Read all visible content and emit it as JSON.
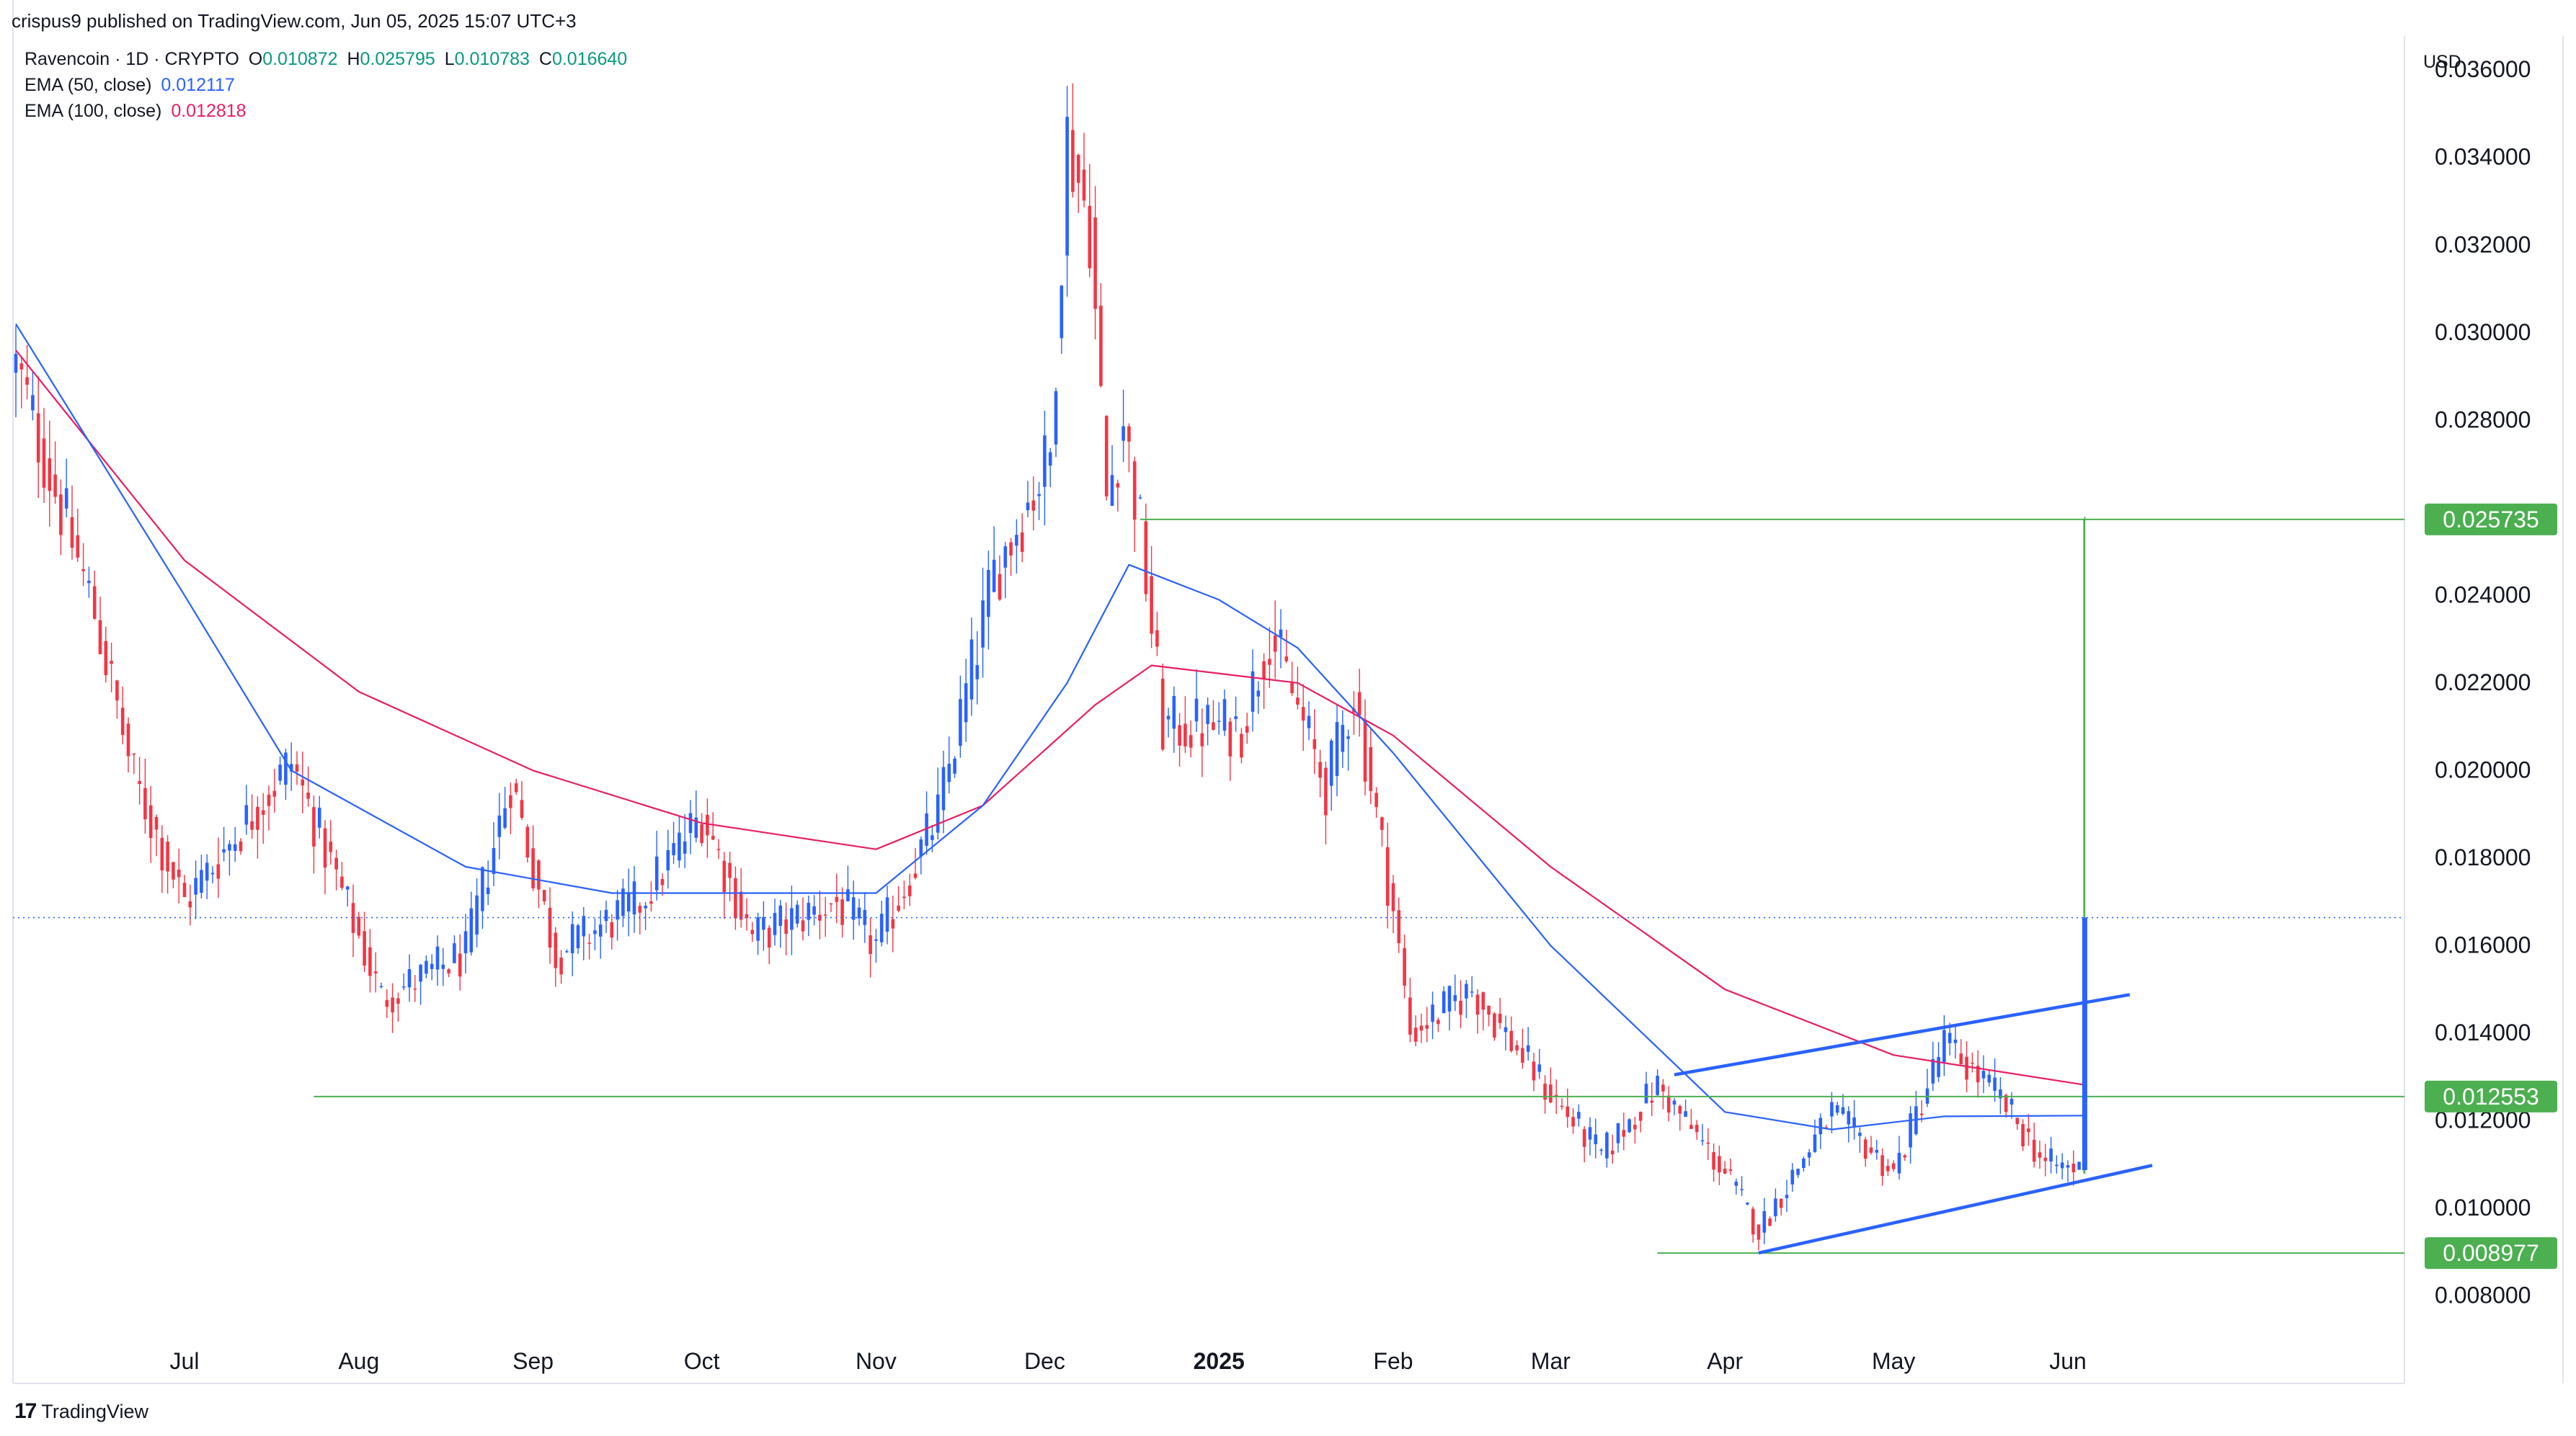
{
  "header": {
    "publisher": "crispus9 published on TradingView.com, Jun 05, 2025 15:07 UTC+3"
  },
  "legend": {
    "symbol": "Ravencoin · 1D · CRYPTO",
    "open_label": "O",
    "open": "0.010872",
    "high_label": "H",
    "high": "0.025795",
    "low_label": "L",
    "low": "0.010783",
    "close_label": "C",
    "close": "0.016640",
    "ema50_label": "EMA (50, close)",
    "ema50_value": "0.012117",
    "ema100_label": "EMA (100, close)",
    "ema100_value": "0.012818"
  },
  "currency": "USD",
  "footer": {
    "brand": "TradingView"
  },
  "colors": {
    "up": "#2962ff",
    "down": "#f23645",
    "ema50": "#2962ff",
    "ema100": "#e91e63",
    "level": "#4caf50",
    "channel": "#2962ff",
    "price_line": "#2962ff"
  },
  "chart_data": {
    "type": "candlestick",
    "y_axis": {
      "range": [
        0.006,
        0.0376
      ],
      "ticks": [
        "0.036000",
        "0.034000",
        "0.032000",
        "0.030000",
        "0.028000",
        "0.024000",
        "0.022000",
        "0.020000",
        "0.018000",
        "0.016000",
        "0.014000",
        "0.012000",
        "0.010000",
        "0.008000"
      ]
    },
    "x_axis": {
      "labels": [
        {
          "label": "Jul",
          "date": "2024-07-01"
        },
        {
          "label": "Aug",
          "date": "2024-08-01"
        },
        {
          "label": "Sep",
          "date": "2024-09-01"
        },
        {
          "label": "Oct",
          "date": "2024-10-01"
        },
        {
          "label": "Nov",
          "date": "2024-11-01"
        },
        {
          "label": "Dec",
          "date": "2024-12-01"
        },
        {
          "label": "2025",
          "date": "2025-01-01",
          "bold": true
        },
        {
          "label": "Feb",
          "date": "2025-02-01"
        },
        {
          "label": "Mar",
          "date": "2025-03-01"
        },
        {
          "label": "Apr",
          "date": "2025-04-01"
        },
        {
          "label": "May",
          "date": "2025-05-01"
        },
        {
          "label": "Jun",
          "date": "2025-06-01"
        }
      ]
    },
    "horizontal_levels": [
      {
        "value": "0.025735",
        "from": "2024-12-18",
        "to": "2025-06-04"
      },
      {
        "value": "0.012553",
        "from": "2024-07-24",
        "to": "2025-06-04"
      },
      {
        "value": "0.008977",
        "from": "2025-03-20",
        "to": "2025-06-04"
      }
    ],
    "last_price": "0.016640",
    "channel": {
      "upper": [
        {
          "date": "2025-03-23",
          "y": 0.01305
        },
        {
          "date": "2025-06-12",
          "y": 0.01488
        }
      ],
      "lower": [
        {
          "date": "2025-04-07",
          "y": 0.00898
        },
        {
          "date": "2025-06-16",
          "y": 0.01098
        }
      ]
    },
    "measure_line": {
      "date": "2025-06-04",
      "from": 0.0108,
      "to": 0.025735
    },
    "key_points": [
      {
        "date": "2024-06-01",
        "close": 0.0292
      },
      {
        "date": "2024-06-15",
        "close": 0.0236
      },
      {
        "date": "2024-06-22",
        "close": 0.0198
      },
      {
        "date": "2024-07-01",
        "close": 0.017
      },
      {
        "date": "2024-07-20",
        "close": 0.0202
      },
      {
        "date": "2024-08-01",
        "close": 0.0162
      },
      {
        "date": "2024-08-05",
        "close": 0.0148
      },
      {
        "date": "2024-08-20",
        "close": 0.0158
      },
      {
        "date": "2024-08-28",
        "close": 0.0198
      },
      {
        "date": "2024-09-05",
        "close": 0.0158
      },
      {
        "date": "2024-09-20",
        "close": 0.017
      },
      {
        "date": "2024-10-01",
        "close": 0.019
      },
      {
        "date": "2024-10-10",
        "close": 0.0162
      },
      {
        "date": "2024-10-25",
        "close": 0.017
      },
      {
        "date": "2024-11-01",
        "close": 0.016
      },
      {
        "date": "2024-11-12",
        "close": 0.019
      },
      {
        "date": "2024-11-22",
        "close": 0.0245
      },
      {
        "date": "2024-12-02",
        "close": 0.0272
      },
      {
        "date": "2024-12-05",
        "close": 0.0345
      },
      {
        "date": "2024-12-09",
        "close": 0.0325
      },
      {
        "date": "2024-12-12",
        "close": 0.0262
      },
      {
        "date": "2024-12-15",
        "close": 0.028
      },
      {
        "date": "2024-12-18",
        "close": 0.0255
      },
      {
        "date": "2024-12-22",
        "close": 0.021
      },
      {
        "date": "2025-01-05",
        "close": 0.021
      },
      {
        "date": "2025-01-10",
        "close": 0.0232
      },
      {
        "date": "2025-01-20",
        "close": 0.0196
      },
      {
        "date": "2025-01-25",
        "close": 0.0218
      },
      {
        "date": "2025-02-01",
        "close": 0.0168
      },
      {
        "date": "2025-02-04",
        "close": 0.014
      },
      {
        "date": "2025-02-15",
        "close": 0.015
      },
      {
        "date": "2025-03-01",
        "close": 0.0126
      },
      {
        "date": "2025-03-10",
        "close": 0.0112
      },
      {
        "date": "2025-03-20",
        "close": 0.0128
      },
      {
        "date": "2025-04-01",
        "close": 0.0108
      },
      {
        "date": "2025-04-07",
        "close": 0.0095
      },
      {
        "date": "2025-04-20",
        "close": 0.0122
      },
      {
        "date": "2025-05-01",
        "close": 0.0108
      },
      {
        "date": "2025-05-10",
        "close": 0.0138
      },
      {
        "date": "2025-05-20",
        "close": 0.0125
      },
      {
        "date": "2025-05-28",
        "close": 0.011
      },
      {
        "date": "2025-06-03",
        "close": 0.0109
      },
      {
        "date": "2025-06-04",
        "close": 0.01664
      }
    ],
    "ema50_points": [
      {
        "date": "2024-06-01",
        "y": 0.0302
      },
      {
        "date": "2024-07-01",
        "y": 0.024
      },
      {
        "date": "2024-07-20",
        "y": 0.02
      },
      {
        "date": "2024-08-20",
        "y": 0.0178
      },
      {
        "date": "2024-09-15",
        "y": 0.0172
      },
      {
        "date": "2024-10-15",
        "y": 0.0172
      },
      {
        "date": "2024-11-01",
        "y": 0.0172
      },
      {
        "date": "2024-11-20",
        "y": 0.0192
      },
      {
        "date": "2024-12-05",
        "y": 0.022
      },
      {
        "date": "2024-12-16",
        "y": 0.0247
      },
      {
        "date": "2025-01-01",
        "y": 0.0239
      },
      {
        "date": "2025-01-15",
        "y": 0.0228
      },
      {
        "date": "2025-02-01",
        "y": 0.0204
      },
      {
        "date": "2025-03-01",
        "y": 0.016
      },
      {
        "date": "2025-04-01",
        "y": 0.0122
      },
      {
        "date": "2025-04-20",
        "y": 0.0118
      },
      {
        "date": "2025-05-10",
        "y": 0.0121
      },
      {
        "date": "2025-06-04",
        "y": 0.012117
      }
    ],
    "ema100_points": [
      {
        "date": "2024-06-01",
        "y": 0.0296
      },
      {
        "date": "2024-07-01",
        "y": 0.0248
      },
      {
        "date": "2024-08-01",
        "y": 0.0218
      },
      {
        "date": "2024-09-01",
        "y": 0.02
      },
      {
        "date": "2024-10-01",
        "y": 0.0188
      },
      {
        "date": "2024-11-01",
        "y": 0.0182
      },
      {
        "date": "2024-11-20",
        "y": 0.0192
      },
      {
        "date": "2024-12-10",
        "y": 0.0215
      },
      {
        "date": "2024-12-20",
        "y": 0.0224
      },
      {
        "date": "2025-01-15",
        "y": 0.022
      },
      {
        "date": "2025-02-01",
        "y": 0.0208
      },
      {
        "date": "2025-03-01",
        "y": 0.0178
      },
      {
        "date": "2025-04-01",
        "y": 0.015
      },
      {
        "date": "2025-05-01",
        "y": 0.0135
      },
      {
        "date": "2025-06-04",
        "y": 0.012818
      }
    ]
  }
}
